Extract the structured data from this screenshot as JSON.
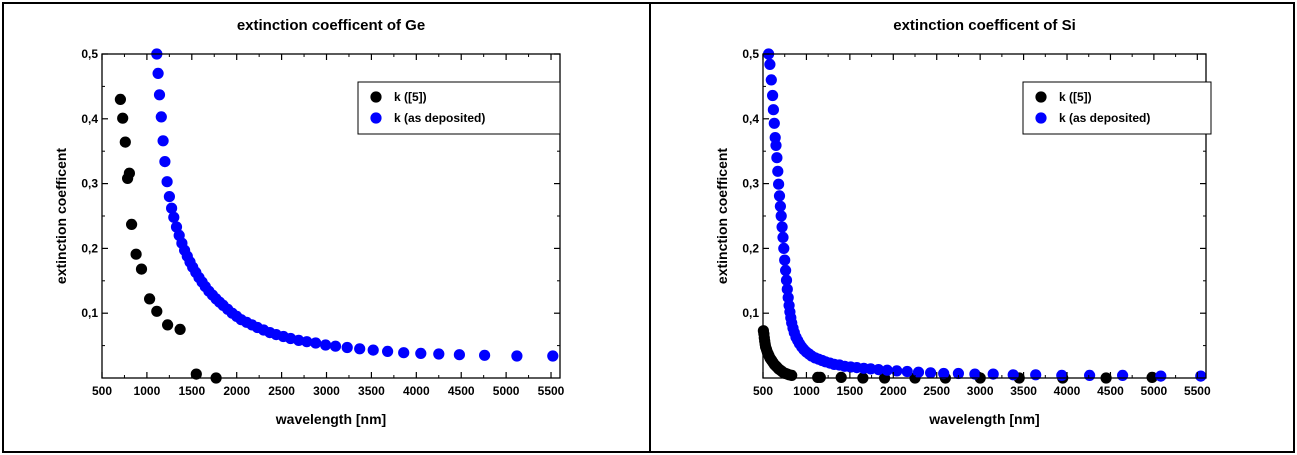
{
  "chart_data": [
    {
      "type": "scatter",
      "title": "extinction coefficent of Ge",
      "xlabel": "wavelength [nm]",
      "ylabel": "extinction coefficent",
      "xlim": [
        500,
        5600
      ],
      "ylim": [
        0,
        0.5
      ],
      "xticks": [
        500,
        1000,
        1500,
        2000,
        2500,
        3000,
        3500,
        4000,
        4500,
        5000,
        5500
      ],
      "yticks": [
        0.1,
        0.2,
        0.3,
        0.4,
        0.5
      ],
      "ytick_labels": [
        "0,1",
        "0,2",
        "0,3",
        "0,4",
        "0,5"
      ],
      "grid": false,
      "legend_position": "top-right",
      "series": [
        {
          "name": "k ([5])",
          "color": "#000000",
          "x": [
            705,
            730,
            760,
            785,
            805,
            830,
            880,
            940,
            1030,
            1110,
            1230,
            1370,
            1550,
            1770
          ],
          "y": [
            0.43,
            0.401,
            0.364,
            0.308,
            0.316,
            0.237,
            0.191,
            0.168,
            0.122,
            0.103,
            0.082,
            0.075,
            0.006,
            0.0
          ]
        },
        {
          "name": "k (as deposited)",
          "color": "#0000ff",
          "x": [
            1110,
            1125,
            1140,
            1160,
            1180,
            1200,
            1225,
            1250,
            1275,
            1300,
            1330,
            1360,
            1390,
            1420,
            1450,
            1480,
            1510,
            1545,
            1580,
            1615,
            1650,
            1690,
            1730,
            1770,
            1810,
            1850,
            1900,
            1950,
            2000,
            2050,
            2110,
            2170,
            2230,
            2300,
            2370,
            2440,
            2520,
            2600,
            2690,
            2780,
            2880,
            2990,
            3100,
            3230,
            3370,
            3520,
            3680,
            3860,
            4050,
            4250,
            4480,
            4760,
            5120,
            5520
          ],
          "y": [
            0.5,
            0.47,
            0.437,
            0.403,
            0.366,
            0.334,
            0.303,
            0.28,
            0.262,
            0.248,
            0.233,
            0.22,
            0.208,
            0.197,
            0.188,
            0.179,
            0.171,
            0.163,
            0.155,
            0.148,
            0.141,
            0.134,
            0.128,
            0.122,
            0.117,
            0.112,
            0.106,
            0.1,
            0.095,
            0.09,
            0.086,
            0.082,
            0.078,
            0.074,
            0.07,
            0.067,
            0.064,
            0.061,
            0.058,
            0.056,
            0.054,
            0.051,
            0.049,
            0.047,
            0.045,
            0.043,
            0.041,
            0.039,
            0.038,
            0.037,
            0.036,
            0.035,
            0.034,
            0.034
          ]
        }
      ]
    },
    {
      "type": "scatter",
      "title": "extinction coefficent of Si",
      "xlabel": "wavelength [nm]",
      "ylabel": "extinction coefficent",
      "xlim": [
        500,
        5600
      ],
      "ylim": [
        0,
        0.5
      ],
      "xticks": [
        500,
        1000,
        1500,
        2000,
        2500,
        3000,
        3500,
        4000,
        4500,
        5000,
        5500
      ],
      "yticks": [
        0.1,
        0.2,
        0.3,
        0.4,
        0.5
      ],
      "ytick_labels": [
        "0,1",
        "0,2",
        "0,3",
        "0,4",
        "0,5"
      ],
      "grid": false,
      "legend_position": "top-right",
      "series": [
        {
          "name": "k ([5])",
          "color": "#000000",
          "x": [
            505,
            510,
            515,
            520,
            525,
            530,
            540,
            550,
            560,
            570,
            580,
            590,
            600,
            615,
            630,
            645,
            660,
            680,
            700,
            720,
            740,
            760,
            780,
            800,
            830,
            1130,
            1160,
            1400,
            1650,
            1900,
            2250,
            2600,
            3000,
            3450,
            3950,
            4450,
            4980
          ],
          "y": [
            0.073,
            0.068,
            0.062,
            0.057,
            0.052,
            0.048,
            0.044,
            0.04,
            0.037,
            0.034,
            0.031,
            0.029,
            0.027,
            0.024,
            0.021,
            0.019,
            0.017,
            0.014,
            0.012,
            0.01,
            0.008,
            0.007,
            0.006,
            0.005,
            0.004,
            0.001,
            0.001,
            0.001,
            0.0,
            0.0,
            0.0,
            0.0,
            0.0,
            0.0,
            0.0,
            0.0,
            0.001
          ]
        },
        {
          "name": "k (as deposited)",
          "color": "#0000ff",
          "x": [
            565,
            580,
            595,
            610,
            620,
            630,
            640,
            650,
            660,
            670,
            680,
            690,
            700,
            710,
            720,
            730,
            740,
            750,
            760,
            770,
            780,
            790,
            800,
            810,
            820,
            830,
            845,
            860,
            880,
            900,
            920,
            945,
            970,
            1000,
            1030,
            1060,
            1100,
            1140,
            1180,
            1220,
            1270,
            1320,
            1380,
            1440,
            1510,
            1580,
            1660,
            1740,
            1830,
            1930,
            2040,
            2160,
            2290,
            2430,
            2580,
            2750,
            2940,
            3150,
            3380,
            3640,
            3940,
            4260,
            4640,
            5080,
            5540
          ],
          "y": [
            0.5,
            0.484,
            0.46,
            0.436,
            0.414,
            0.393,
            0.371,
            0.359,
            0.34,
            0.319,
            0.299,
            0.281,
            0.265,
            0.25,
            0.233,
            0.217,
            0.2,
            0.182,
            0.166,
            0.151,
            0.137,
            0.124,
            0.112,
            0.102,
            0.093,
            0.085,
            0.077,
            0.07,
            0.063,
            0.058,
            0.053,
            0.048,
            0.044,
            0.04,
            0.037,
            0.034,
            0.031,
            0.029,
            0.027,
            0.025,
            0.023,
            0.021,
            0.02,
            0.018,
            0.017,
            0.016,
            0.015,
            0.014,
            0.013,
            0.012,
            0.011,
            0.01,
            0.009,
            0.008,
            0.007,
            0.007,
            0.006,
            0.006,
            0.005,
            0.005,
            0.004,
            0.004,
            0.004,
            0.003,
            0.003
          ]
        }
      ]
    }
  ]
}
